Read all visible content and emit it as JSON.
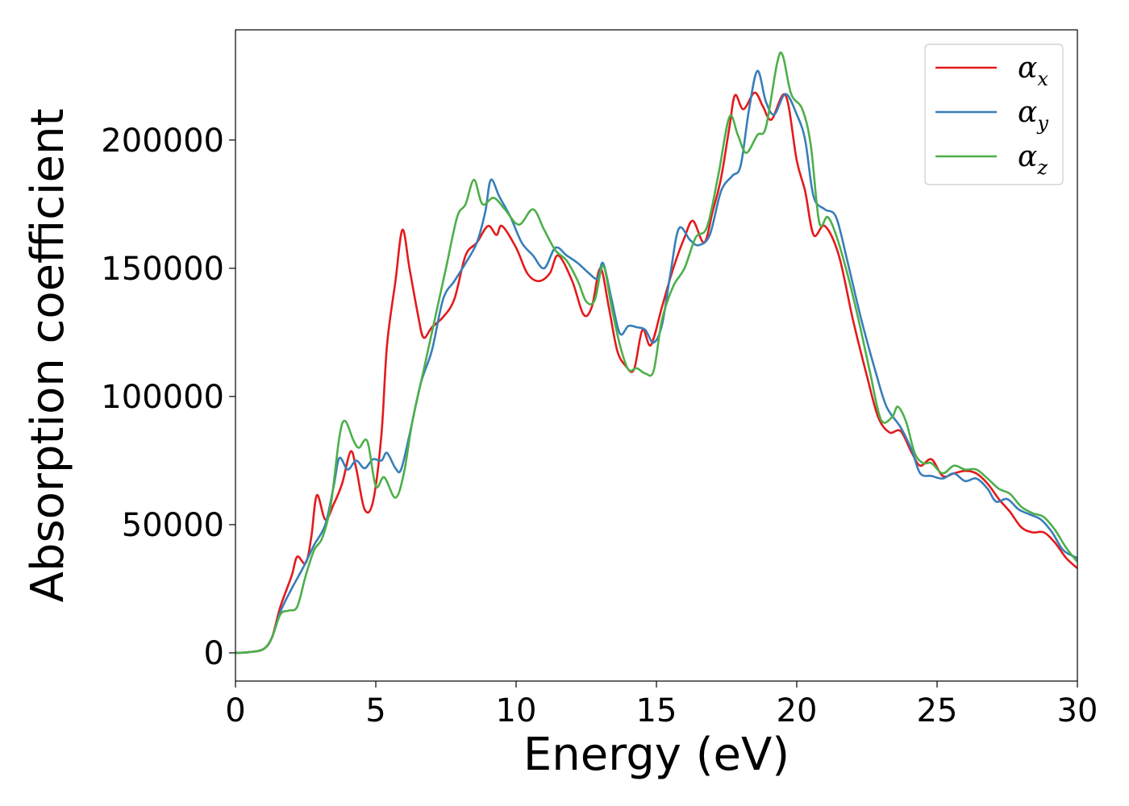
{
  "chart_data": {
    "type": "line",
    "xlabel": "Energy (eV)",
    "ylabel": "Absorption coefficient",
    "xlim": [
      0,
      30
    ],
    "ylim": [
      -11000,
      243000
    ],
    "x_ticks": [
      0,
      5,
      10,
      15,
      20,
      25,
      30
    ],
    "y_ticks": [
      0,
      50000,
      100000,
      150000,
      200000
    ],
    "legend_position": "top-right",
    "grid": false,
    "series": [
      {
        "name": "α_x",
        "label_base": "α",
        "label_sub": "x",
        "color": "#e41a1c",
        "points": [
          [
            0,
            0
          ],
          [
            0.5,
            300
          ],
          [
            1,
            1500
          ],
          [
            1.3,
            6000
          ],
          [
            1.6,
            18000
          ],
          [
            2,
            30000
          ],
          [
            2.2,
            37500
          ],
          [
            2.5,
            35000
          ],
          [
            2.7,
            45000
          ],
          [
            2.9,
            61500
          ],
          [
            3.2,
            52000
          ],
          [
            3.5,
            58000
          ],
          [
            3.8,
            66000
          ],
          [
            4.1,
            78500
          ],
          [
            4.3,
            72000
          ],
          [
            4.6,
            56000
          ],
          [
            4.9,
            59000
          ],
          [
            5.2,
            85000
          ],
          [
            5.4,
            120000
          ],
          [
            5.7,
            145000
          ],
          [
            5.95,
            165000
          ],
          [
            6.2,
            150000
          ],
          [
            6.5,
            132000
          ],
          [
            6.7,
            123000
          ],
          [
            7,
            127000
          ],
          [
            7.4,
            131000
          ],
          [
            7.8,
            138000
          ],
          [
            8.2,
            155000
          ],
          [
            8.6,
            160000
          ],
          [
            9,
            166500
          ],
          [
            9.3,
            163000
          ],
          [
            9.5,
            166500
          ],
          [
            10,
            158000
          ],
          [
            10.4,
            148000
          ],
          [
            10.8,
            145000
          ],
          [
            11.2,
            148000
          ],
          [
            11.5,
            155000
          ],
          [
            12,
            145000
          ],
          [
            12.4,
            132000
          ],
          [
            12.7,
            135000
          ],
          [
            13,
            150000
          ],
          [
            13.3,
            135000
          ],
          [
            13.6,
            118000
          ],
          [
            13.9,
            112000
          ],
          [
            14.2,
            110500
          ],
          [
            14.5,
            126000
          ],
          [
            14.8,
            120000
          ],
          [
            15.2,
            135000
          ],
          [
            15.6,
            150000
          ],
          [
            16,
            162000
          ],
          [
            16.3,
            168500
          ],
          [
            16.7,
            160000
          ],
          [
            17,
            172000
          ],
          [
            17.3,
            185000
          ],
          [
            17.6,
            205000
          ],
          [
            17.8,
            217500
          ],
          [
            18.1,
            212000
          ],
          [
            18.5,
            218500
          ],
          [
            18.8,
            213000
          ],
          [
            19.1,
            208000
          ],
          [
            19.6,
            217500
          ],
          [
            20,
            192000
          ],
          [
            20.3,
            180000
          ],
          [
            20.6,
            163000
          ],
          [
            21,
            166500
          ],
          [
            21.5,
            155000
          ],
          [
            22,
            130000
          ],
          [
            22.5,
            108000
          ],
          [
            22.9,
            92000
          ],
          [
            23.3,
            86000
          ],
          [
            23.7,
            86500
          ],
          [
            24.1,
            78000
          ],
          [
            24.4,
            73000
          ],
          [
            24.8,
            75500
          ],
          [
            25.2,
            69000
          ],
          [
            25.6,
            70000
          ],
          [
            26,
            71000
          ],
          [
            26.4,
            70000
          ],
          [
            26.8,
            66000
          ],
          [
            27.2,
            60000
          ],
          [
            27.6,
            55000
          ],
          [
            28,
            49000
          ],
          [
            28.4,
            47000
          ],
          [
            28.8,
            47000
          ],
          [
            29.2,
            43000
          ],
          [
            29.6,
            37000
          ],
          [
            30,
            33000
          ]
        ]
      },
      {
        "name": "α_y",
        "label_base": "α",
        "label_sub": "y",
        "color": "#377eb8",
        "points": [
          [
            0,
            0
          ],
          [
            0.5,
            300
          ],
          [
            1,
            1500
          ],
          [
            1.3,
            6000
          ],
          [
            1.6,
            16000
          ],
          [
            2,
            25000
          ],
          [
            2.4,
            33000
          ],
          [
            2.8,
            42000
          ],
          [
            3.2,
            50000
          ],
          [
            3.5,
            65000
          ],
          [
            3.7,
            76000
          ],
          [
            4,
            71500
          ],
          [
            4.3,
            75000
          ],
          [
            4.6,
            72000
          ],
          [
            4.9,
            75500
          ],
          [
            5.2,
            75000
          ],
          [
            5.4,
            78000
          ],
          [
            5.7,
            72000
          ],
          [
            5.9,
            71500
          ],
          [
            6.2,
            85000
          ],
          [
            6.6,
            105000
          ],
          [
            7,
            118000
          ],
          [
            7.4,
            138000
          ],
          [
            7.8,
            145000
          ],
          [
            8.2,
            152000
          ],
          [
            8.6,
            160000
          ],
          [
            8.9,
            172000
          ],
          [
            9.1,
            184500
          ],
          [
            9.4,
            178000
          ],
          [
            9.8,
            170000
          ],
          [
            10.2,
            160000
          ],
          [
            10.6,
            155000
          ],
          [
            11,
            150000
          ],
          [
            11.4,
            158000
          ],
          [
            11.8,
            155000
          ],
          [
            12.2,
            152000
          ],
          [
            12.6,
            148000
          ],
          [
            12.9,
            146000
          ],
          [
            13.1,
            152000
          ],
          [
            13.4,
            138000
          ],
          [
            13.7,
            124500
          ],
          [
            14,
            127500
          ],
          [
            14.3,
            127000
          ],
          [
            14.6,
            126000
          ],
          [
            14.9,
            121000
          ],
          [
            15.2,
            128000
          ],
          [
            15.5,
            148000
          ],
          [
            15.8,
            165500
          ],
          [
            16.2,
            161000
          ],
          [
            16.5,
            159000
          ],
          [
            16.9,
            163000
          ],
          [
            17.3,
            180000
          ],
          [
            17.7,
            186000
          ],
          [
            18,
            190000
          ],
          [
            18.3,
            212000
          ],
          [
            18.6,
            227000
          ],
          [
            18.9,
            215000
          ],
          [
            19.2,
            210000
          ],
          [
            19.6,
            218000
          ],
          [
            20,
            210000
          ],
          [
            20.3,
            200000
          ],
          [
            20.6,
            178000
          ],
          [
            21,
            173000
          ],
          [
            21.4,
            170000
          ],
          [
            21.8,
            153000
          ],
          [
            22.3,
            130000
          ],
          [
            22.8,
            110000
          ],
          [
            23.2,
            96000
          ],
          [
            23.7,
            88000
          ],
          [
            24.1,
            79000
          ],
          [
            24.4,
            70000
          ],
          [
            24.8,
            69000
          ],
          [
            25.2,
            68000
          ],
          [
            25.6,
            70000
          ],
          [
            26,
            67000
          ],
          [
            26.4,
            68000
          ],
          [
            26.8,
            64000
          ],
          [
            27.1,
            59000
          ],
          [
            27.5,
            60000
          ],
          [
            27.9,
            56000
          ],
          [
            28.3,
            54000
          ],
          [
            28.7,
            52000
          ],
          [
            29.1,
            47000
          ],
          [
            29.5,
            40000
          ],
          [
            30,
            37000
          ]
        ]
      },
      {
        "name": "α_z",
        "label_base": "α",
        "label_sub": "z",
        "color": "#4daf4a",
        "points": [
          [
            0,
            0
          ],
          [
            0.5,
            300
          ],
          [
            1,
            1500
          ],
          [
            1.3,
            6000
          ],
          [
            1.6,
            15000
          ],
          [
            1.9,
            16500
          ],
          [
            2.2,
            18000
          ],
          [
            2.5,
            30000
          ],
          [
            2.8,
            40000
          ],
          [
            3.1,
            45000
          ],
          [
            3.4,
            58000
          ],
          [
            3.7,
            84000
          ],
          [
            3.9,
            90500
          ],
          [
            4.2,
            83000
          ],
          [
            4.4,
            80000
          ],
          [
            4.7,
            82500
          ],
          [
            5,
            65000
          ],
          [
            5.3,
            68500
          ],
          [
            5.7,
            60500
          ],
          [
            6,
            70000
          ],
          [
            6.3,
            90000
          ],
          [
            6.7,
            110000
          ],
          [
            7.1,
            130000
          ],
          [
            7.5,
            150000
          ],
          [
            7.9,
            170000
          ],
          [
            8.2,
            175000
          ],
          [
            8.5,
            184500
          ],
          [
            8.8,
            175000
          ],
          [
            9.2,
            177500
          ],
          [
            9.6,
            173000
          ],
          [
            10.1,
            167000
          ],
          [
            10.6,
            173000
          ],
          [
            11,
            165000
          ],
          [
            11.4,
            157000
          ],
          [
            11.8,
            153000
          ],
          [
            12.2,
            145000
          ],
          [
            12.5,
            137000
          ],
          [
            12.8,
            137500
          ],
          [
            13.1,
            151000
          ],
          [
            13.4,
            135000
          ],
          [
            13.7,
            120000
          ],
          [
            14,
            110500
          ],
          [
            14.3,
            111000
          ],
          [
            14.6,
            109000
          ],
          [
            14.9,
            110000
          ],
          [
            15.2,
            130000
          ],
          [
            15.6,
            143000
          ],
          [
            16,
            150000
          ],
          [
            16.4,
            162000
          ],
          [
            16.8,
            166000
          ],
          [
            17.2,
            186000
          ],
          [
            17.6,
            209000
          ],
          [
            17.9,
            202000
          ],
          [
            18.2,
            195000
          ],
          [
            18.6,
            202000
          ],
          [
            18.9,
            205000
          ],
          [
            19.3,
            230000
          ],
          [
            19.5,
            233000
          ],
          [
            19.8,
            218000
          ],
          [
            20.2,
            212000
          ],
          [
            20.5,
            198000
          ],
          [
            20.8,
            168000
          ],
          [
            21.1,
            170000
          ],
          [
            21.4,
            163000
          ],
          [
            21.8,
            148000
          ],
          [
            22.2,
            130000
          ],
          [
            22.6,
            110000
          ],
          [
            23,
            91000
          ],
          [
            23.4,
            92000
          ],
          [
            23.6,
            96000
          ],
          [
            23.9,
            90000
          ],
          [
            24.2,
            78000
          ],
          [
            24.5,
            74000
          ],
          [
            24.8,
            74000
          ],
          [
            25.2,
            70000
          ],
          [
            25.6,
            73000
          ],
          [
            26,
            71500
          ],
          [
            26.4,
            71500
          ],
          [
            26.8,
            68000
          ],
          [
            27.2,
            64000
          ],
          [
            27.6,
            62000
          ],
          [
            28,
            57000
          ],
          [
            28.4,
            54500
          ],
          [
            28.8,
            53000
          ],
          [
            29.2,
            48000
          ],
          [
            29.6,
            41000
          ],
          [
            30,
            35500
          ]
        ]
      }
    ]
  }
}
